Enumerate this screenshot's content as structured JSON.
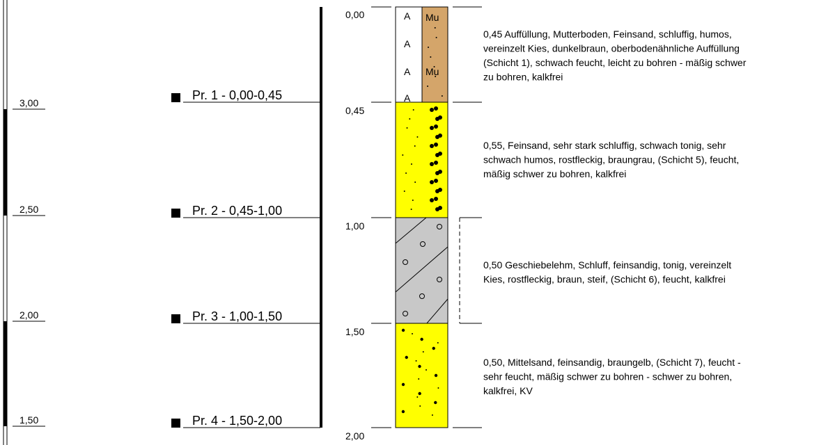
{
  "scale_labels": [
    "3,00",
    "2,50",
    "2,00",
    "1,50"
  ],
  "samples": [
    "Pr. 1 - 0,00-0,45",
    "Pr. 2 - 0,45-1,00",
    "Pr. 3 - 1,00-1,50",
    "Pr. 4 - 1,50-2,00"
  ],
  "depths": [
    "0,00",
    "0,45",
    "1,00",
    "1,50",
    "2,00"
  ],
  "layers": [
    {
      "description_lines": [
        "0,45 Auffüllung, Mutterboden, Feinsand, schluffig, humos,",
        "vereinzelt Kies, dunkelbraun, oberbodenähnliche Auffüllung",
        "(Schicht 1), schwach feucht, leicht zu bohren - mäßig schwer",
        "zu bohren, kalkfrei"
      ]
    },
    {
      "description_lines": [
        "0,55, Feinsand, sehr stark schluffig, schwach tonig, sehr",
        "schwach humos, rostfleckig, braungrau, (Schicht 5), feucht,",
        "mäßig schwer zu bohren, kalkfrei"
      ]
    },
    {
      "description_lines": [
        "0,50 Geschiebelehm, Schluff, feinsandig, tonig, vereinzelt",
        "Kies, rostfleckig, braun, steif, (Schicht 6), feucht, kalkfrei"
      ]
    },
    {
      "description_lines": [
        "0,50, Mittelsand, feinsandig, braungelb, (Schicht 7), feucht -",
        "sehr feucht, mäßig schwer zu bohren - schwer zu bohren,",
        "kalkfrei, KV"
      ]
    }
  ]
}
